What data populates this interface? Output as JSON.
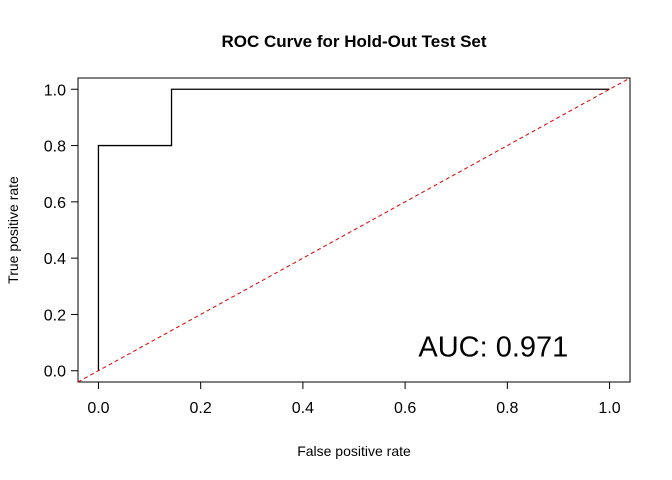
{
  "chart_data": {
    "type": "line",
    "title": "ROC Curve for Hold-Out Test Set",
    "xlabel": "False positive rate",
    "ylabel": "True positive rate",
    "xlim": [
      -0.04,
      1.04
    ],
    "ylim": [
      -0.04,
      1.04
    ],
    "x_ticks": [
      0.0,
      0.2,
      0.4,
      0.6,
      0.8,
      1.0
    ],
    "x_tick_labels": [
      "0.0",
      "0.2",
      "0.4",
      "0.6",
      "0.8",
      "1.0"
    ],
    "y_ticks": [
      0.0,
      0.2,
      0.4,
      0.6,
      0.8,
      1.0
    ],
    "y_tick_labels": [
      "0.0",
      "0.2",
      "0.4",
      "0.6",
      "0.8",
      "1.0"
    ],
    "grid": false,
    "legend": "none",
    "series": [
      {
        "style": "step",
        "color": "#000000",
        "x": [
          0.0,
          0.0,
          0.143,
          0.143,
          1.0
        ],
        "y": [
          0.0,
          0.8,
          0.8,
          1.0,
          1.0
        ]
      },
      {
        "style": "dashed",
        "color": "#dd0000",
        "x": [
          -0.04,
          1.04
        ],
        "y": [
          -0.04,
          1.04
        ]
      }
    ],
    "annotation": {
      "text": "AUC: 0.971",
      "x": 0.8,
      "y": 0.1
    }
  }
}
